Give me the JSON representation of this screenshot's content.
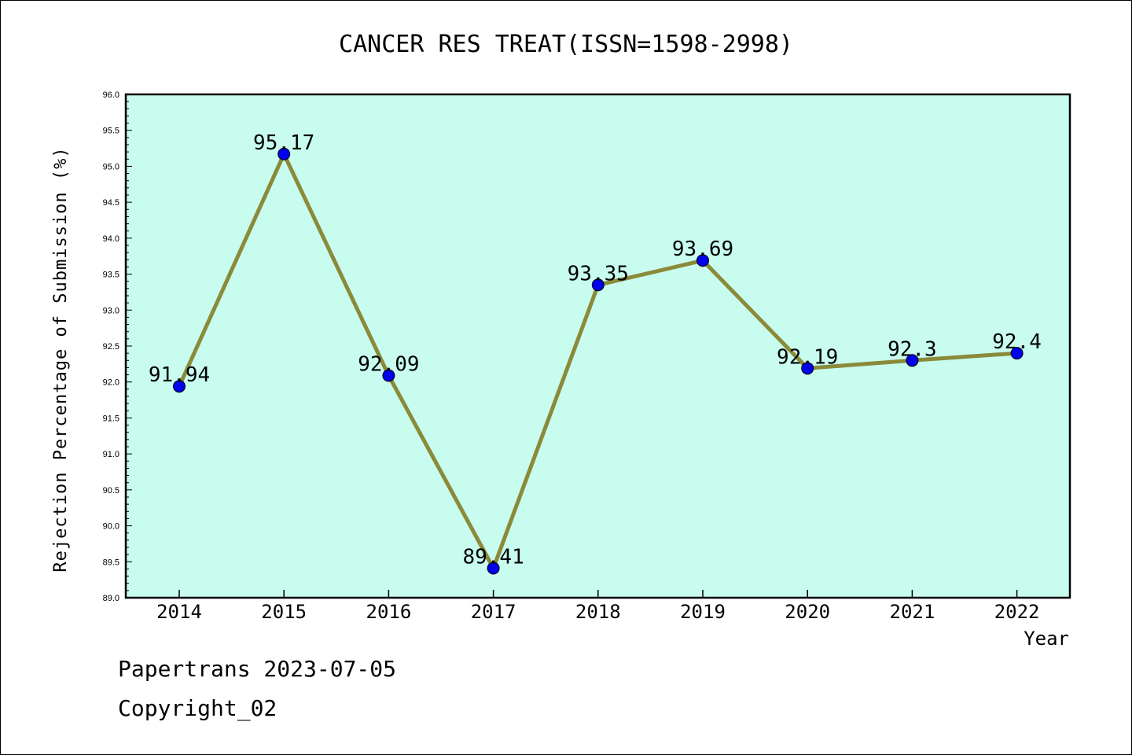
{
  "chart_data": {
    "type": "line",
    "title": "CANCER RES TREAT(ISSN=1598-2998)",
    "xlabel": "Year",
    "ylabel": "Rejection Percentage of Submission (%)",
    "categories": [
      "2014",
      "2015",
      "2016",
      "2017",
      "2018",
      "2019",
      "2020",
      "2021",
      "2022"
    ],
    "series": [
      {
        "values": [
          91.94,
          95.17,
          92.09,
          89.41,
          93.35,
          93.69,
          92.19,
          92.3,
          92.4
        ],
        "data_labels": [
          "91.94",
          "95.17",
          "92.09",
          "89.41",
          "93.35",
          "93.69",
          "92.19",
          "92.3",
          "92.4"
        ]
      }
    ],
    "ylim": [
      89.0,
      96.0
    ],
    "yticks": [
      "89.0",
      "89.5",
      "90.0",
      "90.5",
      "91.0",
      "91.5",
      "92.0",
      "92.5",
      "93.0",
      "93.5",
      "94.0",
      "94.5",
      "95.0",
      "95.5",
      "96.0"
    ],
    "grid": false,
    "colors": {
      "plot_background": "#c8fcee",
      "line": "#8b8a3a",
      "marker": "#0000ee",
      "axes": "#000000"
    }
  },
  "footer": {
    "line1": "Papertrans 2023-07-05",
    "line2": "Copyright_02"
  }
}
